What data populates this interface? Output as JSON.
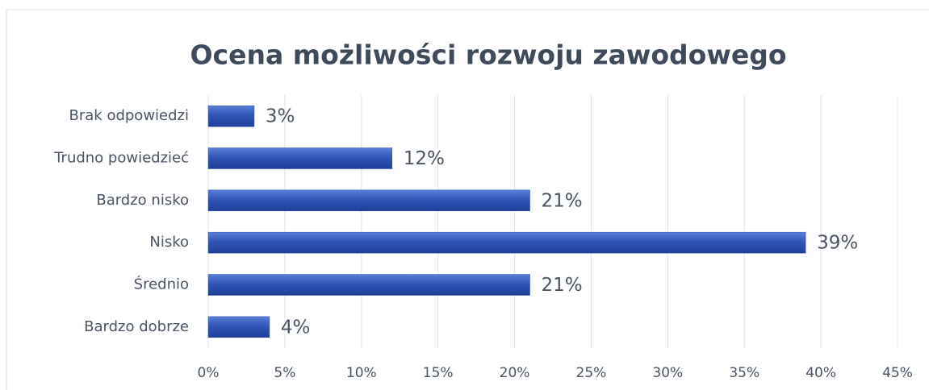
{
  "chart_data": {
    "type": "bar",
    "orientation": "horizontal",
    "title": "Ocena możliwości rozwoju zawodowego",
    "categories": [
      "Brak odpowiedzi",
      "Trudno powiedzieć",
      "Bardzo nisko",
      "Nisko",
      "Średnio",
      "Bardzo dobrze"
    ],
    "values": [
      3,
      12,
      21,
      39,
      21,
      4
    ],
    "value_labels": [
      "3%",
      "12%",
      "21%",
      "39%",
      "21%",
      "4%"
    ],
    "color": "#2f55b8",
    "xlim": [
      0,
      45
    ],
    "xticks": [
      {
        "value": 0,
        "label": "0%"
      },
      {
        "value": 5,
        "label": "5%"
      },
      {
        "value": 10,
        "label": "10%"
      },
      {
        "value": 15,
        "label": "15%"
      },
      {
        "value": 20,
        "label": "20%"
      },
      {
        "value": 25,
        "label": "25%"
      },
      {
        "value": 30,
        "label": "30%"
      },
      {
        "value": 35,
        "label": "35%"
      },
      {
        "value": 40,
        "label": "40%"
      },
      {
        "value": 45,
        "label": "45%"
      }
    ],
    "grid": true
  }
}
